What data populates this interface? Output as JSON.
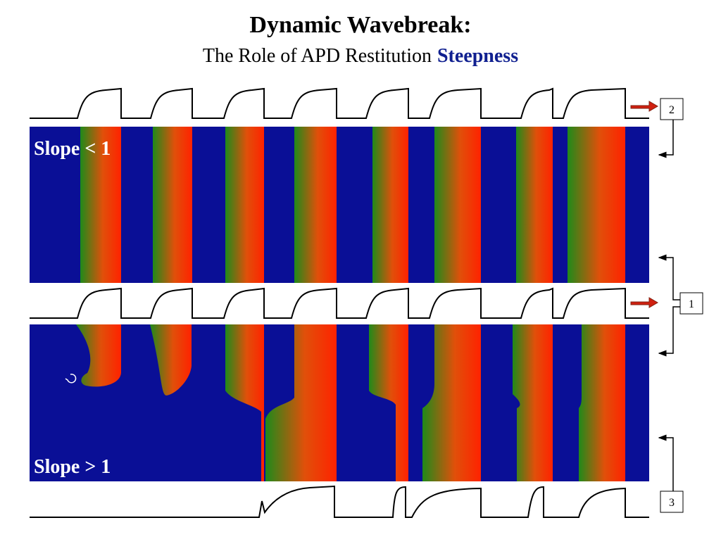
{
  "header": {
    "title": "Dynamic Wavebreak:",
    "subtitle": "The Role of APD Restitution",
    "subtitle_emphasis": "Steepness"
  },
  "panels": [
    {
      "label": "Slope < 1"
    },
    {
      "label": "Slope > 1"
    }
  ],
  "boxes": [
    "2",
    "1",
    "3"
  ]
}
